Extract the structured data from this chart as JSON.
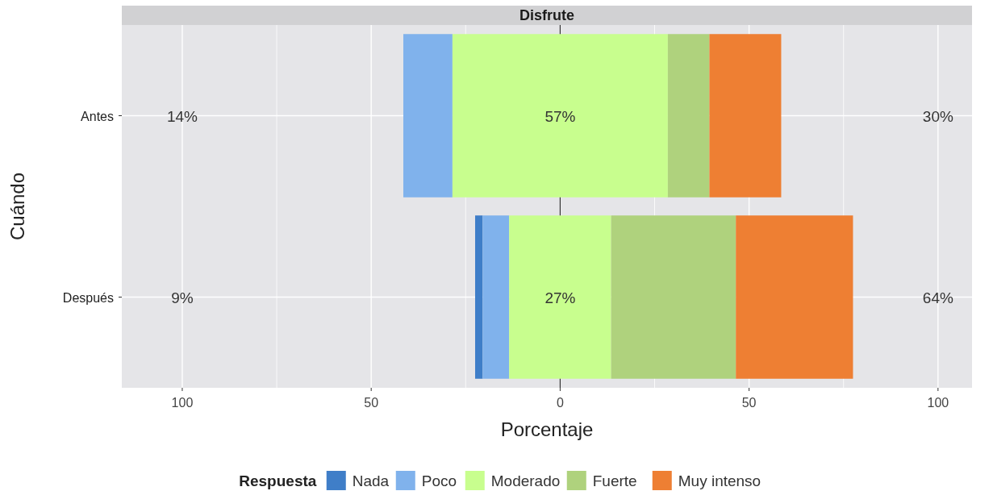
{
  "chart_data": {
    "type": "bar",
    "orientation": "horizontal",
    "title": "Disfrute",
    "xlabel": "Porcentaje",
    "ylabel": "Cuándo",
    "legend_title": "Respuesta",
    "legend": "bottom",
    "grid": true,
    "categories": [
      "Antes",
      "Después"
    ],
    "series": [
      {
        "name": "Nada",
        "color": "#3f7ec8",
        "values": [
          null,
          2
        ],
        "base": [
          null,
          -22.5
        ]
      },
      {
        "name": "Poco",
        "color": "#80b2ec",
        "values": [
          13,
          7
        ],
        "base": [
          -41.5,
          -20.5
        ]
      },
      {
        "name": "Moderado",
        "color": "#c8fe8e",
        "values": [
          57,
          27
        ],
        "base": [
          -28.5,
          -13.5
        ]
      },
      {
        "name": "Fuerte",
        "color": "#afd27d",
        "values": [
          11,
          33
        ],
        "base": [
          28.5,
          13.5
        ]
      },
      {
        "name": "Muy intenso",
        "color": "#ee7f33",
        "values": [
          19,
          31
        ],
        "base": [
          39.5,
          46.5
        ]
      }
    ],
    "xlim": [
      -116,
      109
    ],
    "xticks": [
      {
        "value": -100,
        "label": "100"
      },
      {
        "value": -50,
        "label": "50"
      },
      0,
      50,
      100
    ],
    "ref_lines": [
      {
        "axis": "x",
        "value": 0,
        "color": "#333333"
      }
    ],
    "annotations": [
      "14%",
      {
        "text": "57%",
        "x": 0,
        "y": "Antes"
      },
      "30%",
      "9%",
      {
        "text": "27%",
        "x": 0,
        "y": "Después"
      },
      "64%"
    ]
  }
}
